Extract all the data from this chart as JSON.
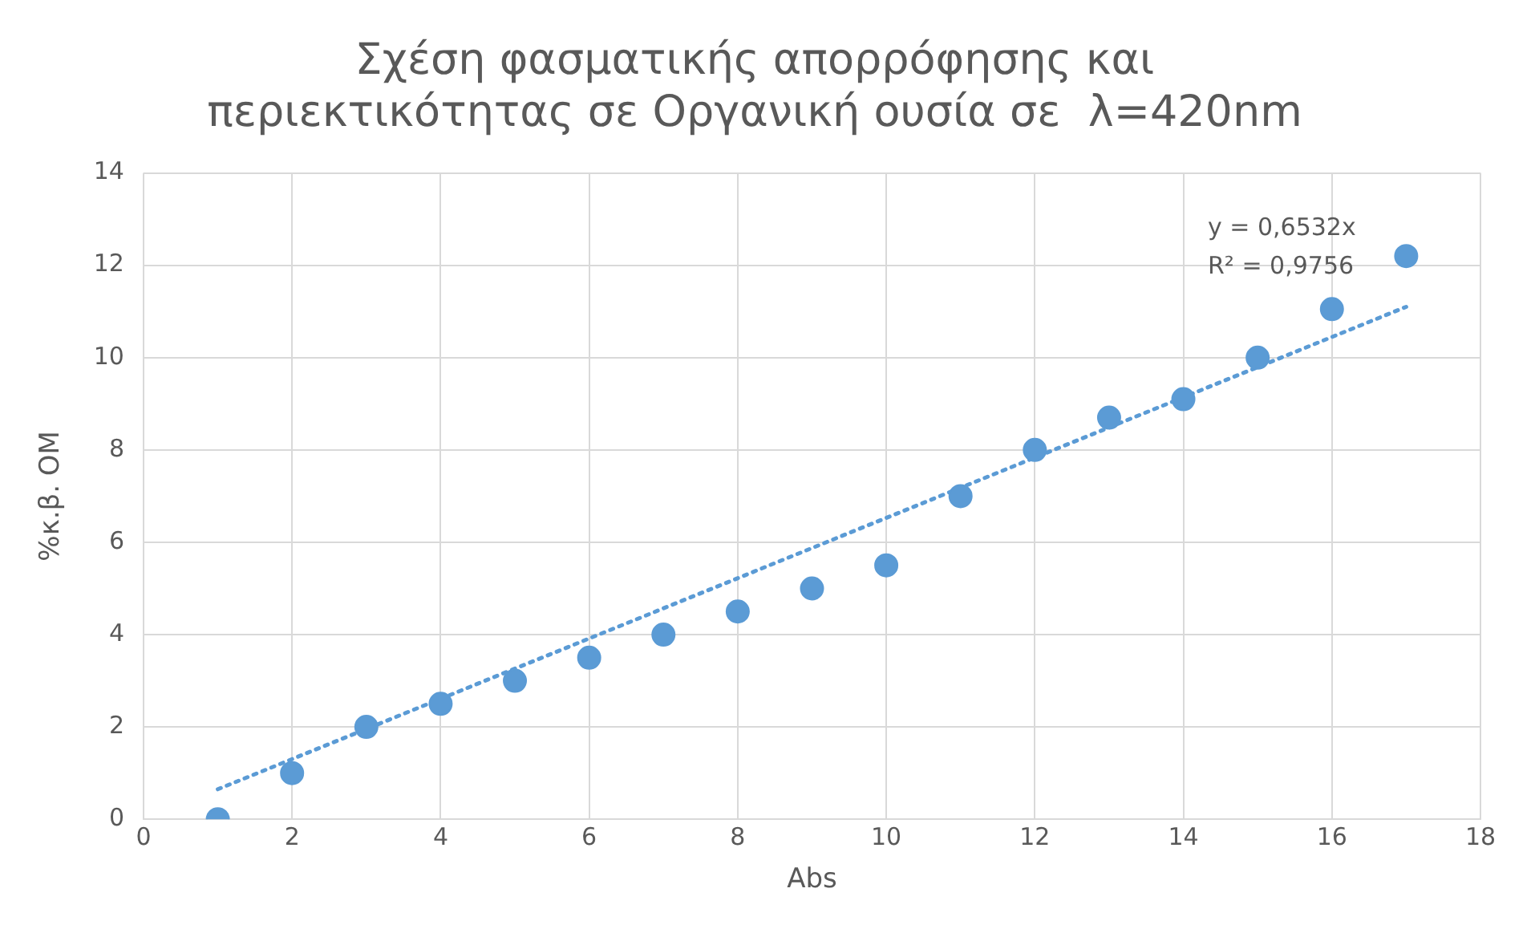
{
  "chart_data": {
    "type": "scatter",
    "title": "Σχέση φασματικής απορρόφησης και\nπεριεκτικότητας σε Οργανική ουσία σε  λ=420nm",
    "xlabel": "Abs",
    "ylabel": "%κ.β. ΟΜ",
    "x": [
      1,
      2,
      3,
      4,
      5,
      6,
      7,
      8,
      9,
      10,
      11,
      12,
      13,
      14,
      15,
      16,
      17
    ],
    "series": [
      {
        "type": "scatter",
        "color": "#5b9bd5",
        "marker": "circle",
        "values": [
          0,
          1,
          2,
          2.5,
          3,
          3.5,
          4,
          4.5,
          5,
          5.5,
          7,
          8,
          8.7,
          9.1,
          10,
          11.05,
          12.2
        ]
      },
      {
        "type": "line",
        "color": "#5b9bd5",
        "line_style": "dotted",
        "marker": "none",
        "x": [
          1,
          17
        ],
        "values": [
          0.65,
          11.1
        ]
      }
    ],
    "xlim": [
      0,
      18
    ],
    "xticks": [
      0,
      2,
      4,
      6,
      8,
      10,
      12,
      14,
      16,
      18
    ],
    "ylim": [
      0,
      14
    ],
    "yticks": [
      0,
      2,
      4,
      6,
      8,
      10,
      12,
      14
    ],
    "grid": true,
    "legend": false,
    "annotations": [
      "y = 0,6532x",
      "R² = 0,9756"
    ]
  }
}
